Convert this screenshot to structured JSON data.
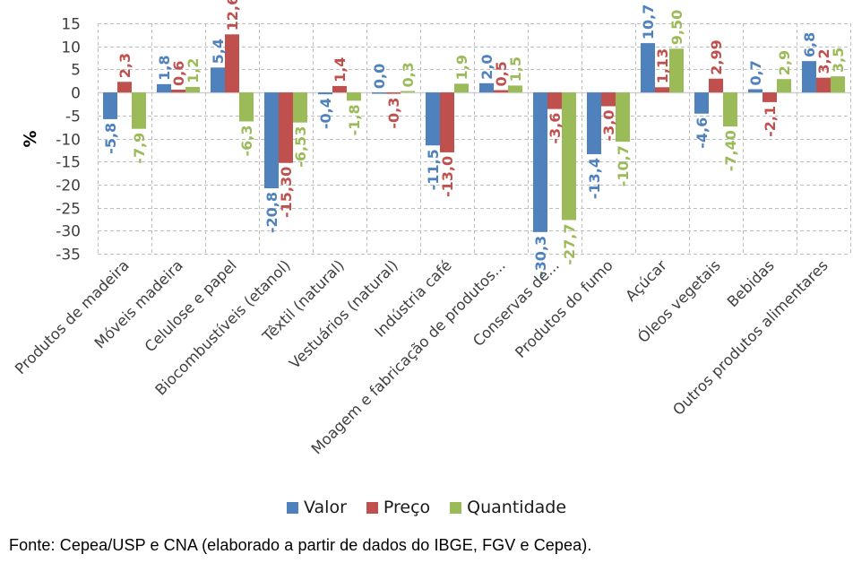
{
  "chart_data": {
    "type": "bar",
    "title": "",
    "xlabel": "",
    "ylabel": "%",
    "ylim": [
      -35,
      15
    ],
    "yticks": [
      15,
      10,
      5,
      0,
      -5,
      -10,
      -15,
      -20,
      -25,
      -30,
      -35
    ],
    "grid": true,
    "legend_position": "bottom",
    "categories": [
      "Produtos de madeira",
      "Móveis madeira",
      "Celulose e papel",
      "Biocombustíveis (etanol)",
      "Têxtil (natural)",
      "Vestuários (natural)",
      "Indústria café",
      "Moagem e fabricação de produtos...",
      "Conservas de...",
      "Produtos do fumo",
      "Açúcar",
      "Óleos vegetais",
      "Bebidas",
      "Outros produtos alimentares"
    ],
    "series": [
      {
        "name": "Valor",
        "color": "#4f81bd",
        "values": [
          -5.8,
          1.8,
          5.4,
          -20.8,
          -0.4,
          0.0,
          -11.5,
          2.0,
          -30.3,
          -13.4,
          10.7,
          -4.6,
          0.7,
          6.8
        ],
        "labels": [
          "-5,8",
          "1,8",
          "5,4",
          "-20,8",
          "-0,4",
          "0,0",
          "-11,5",
          "2,0",
          "-30,3",
          "-13,4",
          "10,7",
          "-4,6",
          "0,7",
          "6,8"
        ]
      },
      {
        "name": "Preço",
        "color": "#c0504d",
        "values": [
          2.3,
          0.6,
          12.6,
          -15.3,
          1.4,
          -0.3,
          -13.0,
          0.5,
          -3.6,
          -3.0,
          1.13,
          2.99,
          -2.1,
          3.2
        ],
        "labels": [
          "2,3",
          "0,6",
          "12,6",
          "-15,30",
          "1,4",
          "-0,3",
          "-13,0",
          "0,5",
          "-3,6",
          "-3,0",
          "1,13",
          "2,99",
          "-2,1",
          "3,2"
        ]
      },
      {
        "name": "Quantidade",
        "color": "#9bbb59",
        "values": [
          -7.9,
          1.2,
          -6.3,
          -6.53,
          -1.8,
          0.3,
          1.9,
          1.5,
          -27.7,
          -10.7,
          9.5,
          -7.4,
          2.9,
          3.5
        ],
        "labels": [
          "-7,9",
          "1,2",
          "-6,3",
          "-6,53",
          "-1,8",
          "0,3",
          "1,9",
          "1,5",
          "-27,7",
          "-10,7",
          "9,50",
          "-7,40",
          "2,9",
          "3,5"
        ]
      }
    ]
  },
  "legend": {
    "items": [
      {
        "label": "Valor",
        "color": "#4f81bd"
      },
      {
        "label": "Preço",
        "color": "#c0504d"
      },
      {
        "label": "Quantidade",
        "color": "#9bbb59"
      }
    ]
  },
  "source_note": "Fonte: Cepea/USP e CNA (elaborado a partir de dados do IBGE, FGV e Cepea)."
}
